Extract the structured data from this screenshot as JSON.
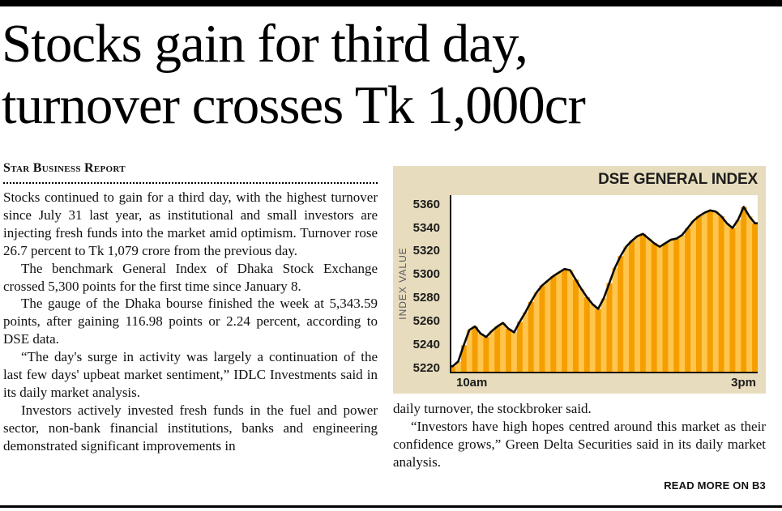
{
  "article": {
    "headline_line1": "Stocks gain for third day,",
    "headline_line2": "turnover crosses Tk 1,000cr",
    "byline": "Star Business Report",
    "left_paragraphs": [
      "Stocks continued to gain for a third day, with the highest turnover since July 31 last year, as institutional and small investors are injecting fresh funds into the market amid optimism. Turnover rose 26.7 percent to Tk 1,079 crore from the previous day.",
      "The benchmark General Index of Dhaka Stock Exchange crossed 5,300 points for the first time since January 8.",
      "The gauge of the Dhaka bourse finished the week at 5,343.59 points, after gaining 116.98 points or 2.24 percent, according to DSE data.",
      "“The day's surge in activity was largely a continuation of the last few days' upbeat market sentiment,” IDLC Investments said in its daily market analysis.",
      "Investors actively invested fresh funds in the fuel and power sector, non-bank financial institutions, banks and engineering demonstrated significant improvements in"
    ],
    "right_paragraphs": [
      "daily turnover, the stockbroker said.",
      "“Investors have high hopes centred around this market as their confidence grows,” Green Delta Securities said in its daily market analysis."
    ],
    "read_more": "READ MORE ON B3"
  },
  "chart_data": {
    "type": "area",
    "title": "DSE GENERAL INDEX",
    "ylabel": "INDEX VALUE",
    "x_ticks": [
      "10am",
      "3pm"
    ],
    "y_ticks": [
      5360,
      5340,
      5320,
      5300,
      5280,
      5260,
      5240,
      5220
    ],
    "ylim": [
      5216,
      5368
    ],
    "values": [
      5222,
      5226,
      5240,
      5253,
      5256,
      5250,
      5247,
      5252,
      5256,
      5259,
      5254,
      5251,
      5260,
      5268,
      5277,
      5285,
      5291,
      5295,
      5299,
      5302,
      5305,
      5304,
      5296,
      5288,
      5281,
      5275,
      5271,
      5280,
      5293,
      5306,
      5316,
      5324,
      5329,
      5333,
      5335,
      5331,
      5327,
      5324,
      5327,
      5330,
      5331,
      5334,
      5340,
      5346,
      5350,
      5353,
      5355,
      5354,
      5350,
      5344,
      5340,
      5347,
      5358,
      5350,
      5344
    ],
    "colors": {
      "panel_bg": "#E7DCBD",
      "bar": "#F59E00",
      "bar_alt": "#FFC54D",
      "line": "#0a0a0a",
      "axis": "#111111"
    },
    "grid": false,
    "legend": "none"
  }
}
